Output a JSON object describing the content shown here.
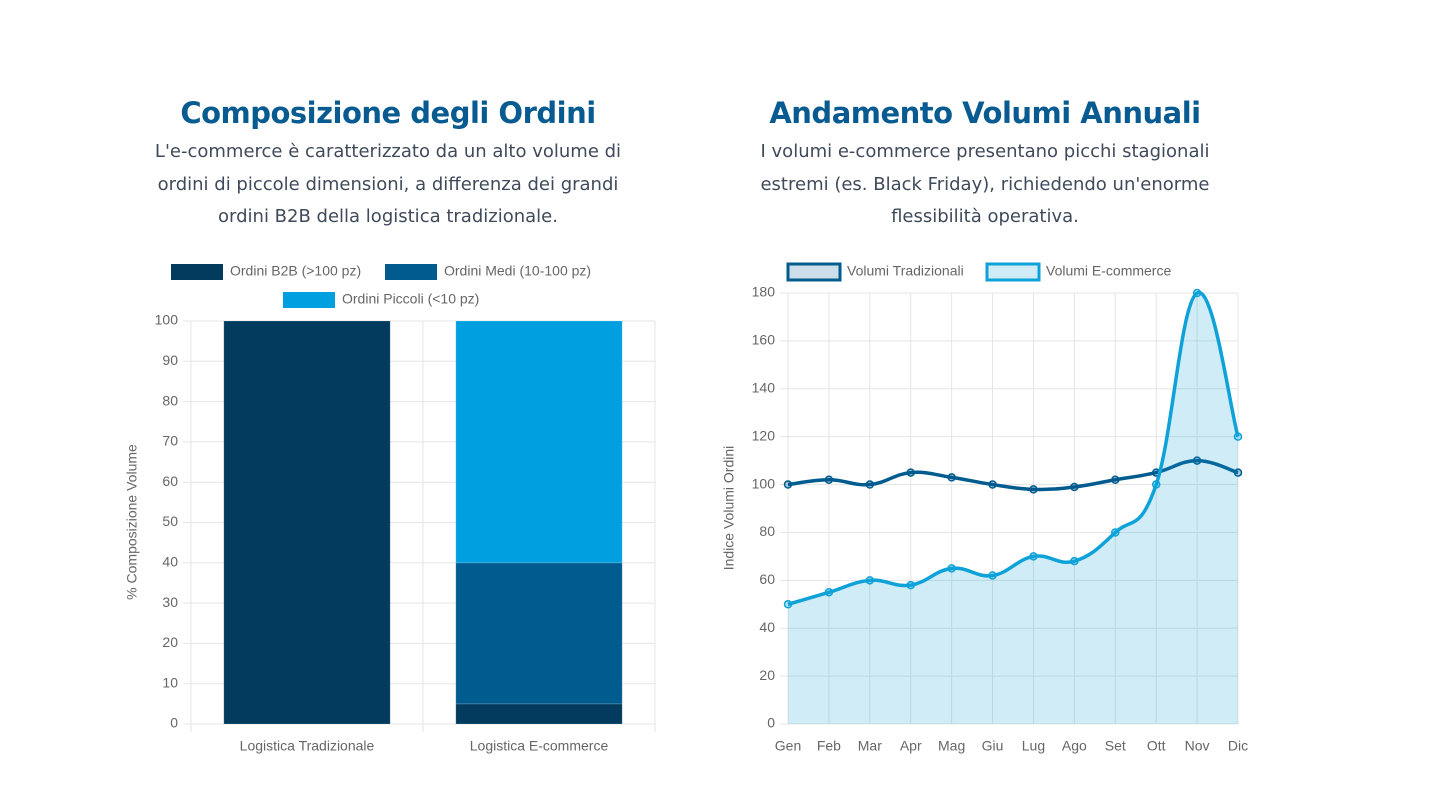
{
  "chart_data": [
    {
      "type": "bar",
      "stacked": true,
      "title": "Composizione degli Ordini",
      "subtitle": "L'e-commerce è caratterizzato da un alto volume di ordini di piccole dimensioni, a differenza dei grandi ordini B2B della logistica tradizionale.",
      "y_label": "% Composizione Volume",
      "categories": [
        "Logistica Tradizionale",
        "Logistica E-commerce"
      ],
      "series": [
        {
          "name": "Ordini B2B (>100 pz)",
          "color": "#023b5e",
          "values": [
            100,
            5
          ]
        },
        {
          "name": "Ordini Medi (10-100 pz)",
          "color": "#005b8f",
          "values": [
            0,
            35
          ]
        },
        {
          "name": "Ordini Piccoli (<10 pz)",
          "color": "#00a0e0",
          "values": [
            0,
            60
          ]
        }
      ],
      "ylim": [
        0,
        100
      ],
      "yticks": [
        0,
        10,
        20,
        30,
        40,
        50,
        60,
        70,
        80,
        90,
        100
      ],
      "grid": true
    },
    {
      "type": "line",
      "title": "Andamento Volumi Annuali",
      "subtitle": "I volumi e-commerce presentano picchi stagionali estremi (es. Black Friday), richiedendo un'enorme flessibilità operativa.",
      "y_label": "Indice Volumi Ordini",
      "categories": [
        "Gen",
        "Feb",
        "Mar",
        "Apr",
        "Mag",
        "Giu",
        "Lug",
        "Ago",
        "Set",
        "Ott",
        "Nov",
        "Dic"
      ],
      "series": [
        {
          "name": "Volumi Tradizionali",
          "color": "#005b8f",
          "values": [
            100,
            102,
            100,
            105,
            103,
            100,
            98,
            99,
            102,
            105,
            110,
            105
          ]
        },
        {
          "name": "Volumi E-commerce",
          "color": "#0ea2d9",
          "fill": true,
          "values": [
            50,
            55,
            60,
            58,
            65,
            62,
            70,
            68,
            80,
            100,
            180,
            120
          ]
        }
      ],
      "ylim": [
        0,
        180
      ],
      "yticks": [
        0,
        20,
        40,
        60,
        80,
        100,
        120,
        140,
        160,
        180
      ],
      "grid": true
    }
  ]
}
